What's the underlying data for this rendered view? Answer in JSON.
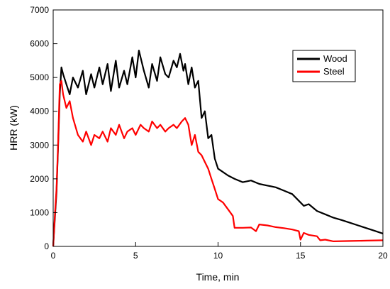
{
  "chart_data": {
    "type": "line",
    "title": "",
    "xlabel": "Time, min",
    "ylabel": "HRR (kW)",
    "xlim": [
      0,
      20
    ],
    "ylim": [
      0,
      7000
    ],
    "xticks": [
      0,
      5,
      10,
      15,
      20
    ],
    "yticks": [
      0,
      1000,
      2000,
      3000,
      4000,
      5000,
      6000,
      7000
    ],
    "grid": false,
    "legend": "top-right",
    "series": [
      {
        "name": "Wood",
        "color": "#000000",
        "x": [
          0,
          0.1,
          0.2,
          0.3,
          0.4,
          0.5,
          0.6,
          0.8,
          1.0,
          1.2,
          1.5,
          1.8,
          2.0,
          2.3,
          2.5,
          2.8,
          3.0,
          3.3,
          3.5,
          3.8,
          4.0,
          4.3,
          4.5,
          4.8,
          5.0,
          5.2,
          5.5,
          5.8,
          6.0,
          6.3,
          6.5,
          6.8,
          7.0,
          7.3,
          7.5,
          7.7,
          7.9,
          8.0,
          8.2,
          8.4,
          8.6,
          8.8,
          9.0,
          9.2,
          9.4,
          9.6,
          9.8,
          10.0,
          10.3,
          10.6,
          11.0,
          11.5,
          12.0,
          12.5,
          13.0,
          13.5,
          14.0,
          14.5,
          15.0,
          15.2,
          15.5,
          16.0,
          16.5,
          17.0,
          17.5,
          18.0,
          18.5,
          19.0,
          19.5,
          20.0
        ],
        "y": [
          0,
          800,
          1600,
          3000,
          4500,
          5300,
          5100,
          4800,
          4500,
          5000,
          4700,
          5200,
          4500,
          5100,
          4700,
          5300,
          4800,
          5400,
          4600,
          5500,
          4700,
          5200,
          4800,
          5600,
          5000,
          5800,
          5200,
          4700,
          5400,
          4900,
          5600,
          5100,
          5000,
          5500,
          5300,
          5700,
          5200,
          5400,
          4800,
          5300,
          4700,
          4900,
          3800,
          4000,
          3200,
          3300,
          2600,
          2300,
          2200,
          2100,
          2000,
          1900,
          1950,
          1850,
          1800,
          1750,
          1650,
          1550,
          1300,
          1200,
          1250,
          1050,
          950,
          850,
          780,
          700,
          620,
          540,
          460,
          380
        ]
      },
      {
        "name": "Steel",
        "color": "#ff0000",
        "x": [
          0,
          0.1,
          0.2,
          0.3,
          0.4,
          0.5,
          0.6,
          0.8,
          1.0,
          1.2,
          1.5,
          1.8,
          2.0,
          2.3,
          2.5,
          2.8,
          3.0,
          3.3,
          3.5,
          3.8,
          4.0,
          4.3,
          4.5,
          4.8,
          5.0,
          5.3,
          5.5,
          5.8,
          6.0,
          6.3,
          6.5,
          6.8,
          7.0,
          7.3,
          7.5,
          7.8,
          8.0,
          8.2,
          8.4,
          8.6,
          8.8,
          9.0,
          9.2,
          9.4,
          9.6,
          9.8,
          10.0,
          10.3,
          10.6,
          10.9,
          11.0,
          11.5,
          12.0,
          12.3,
          12.5,
          13.0,
          13.5,
          14.0,
          14.5,
          14.9,
          15.0,
          15.2,
          15.5,
          16.0,
          16.2,
          16.5,
          17.0,
          18.0,
          19.0,
          20.0
        ],
        "y": [
          0,
          900,
          1700,
          3100,
          4800,
          4900,
          4500,
          4100,
          4300,
          3800,
          3300,
          3100,
          3400,
          3000,
          3300,
          3200,
          3400,
          3100,
          3500,
          3300,
          3600,
          3200,
          3400,
          3500,
          3300,
          3600,
          3500,
          3400,
          3700,
          3500,
          3600,
          3400,
          3500,
          3600,
          3500,
          3700,
          3800,
          3600,
          3000,
          3300,
          2800,
          2700,
          2500,
          2300,
          2000,
          1700,
          1400,
          1300,
          1100,
          900,
          550,
          550,
          560,
          450,
          650,
          620,
          570,
          540,
          500,
          450,
          200,
          400,
          340,
          300,
          180,
          200,
          150,
          160,
          170,
          180
        ]
      }
    ]
  }
}
